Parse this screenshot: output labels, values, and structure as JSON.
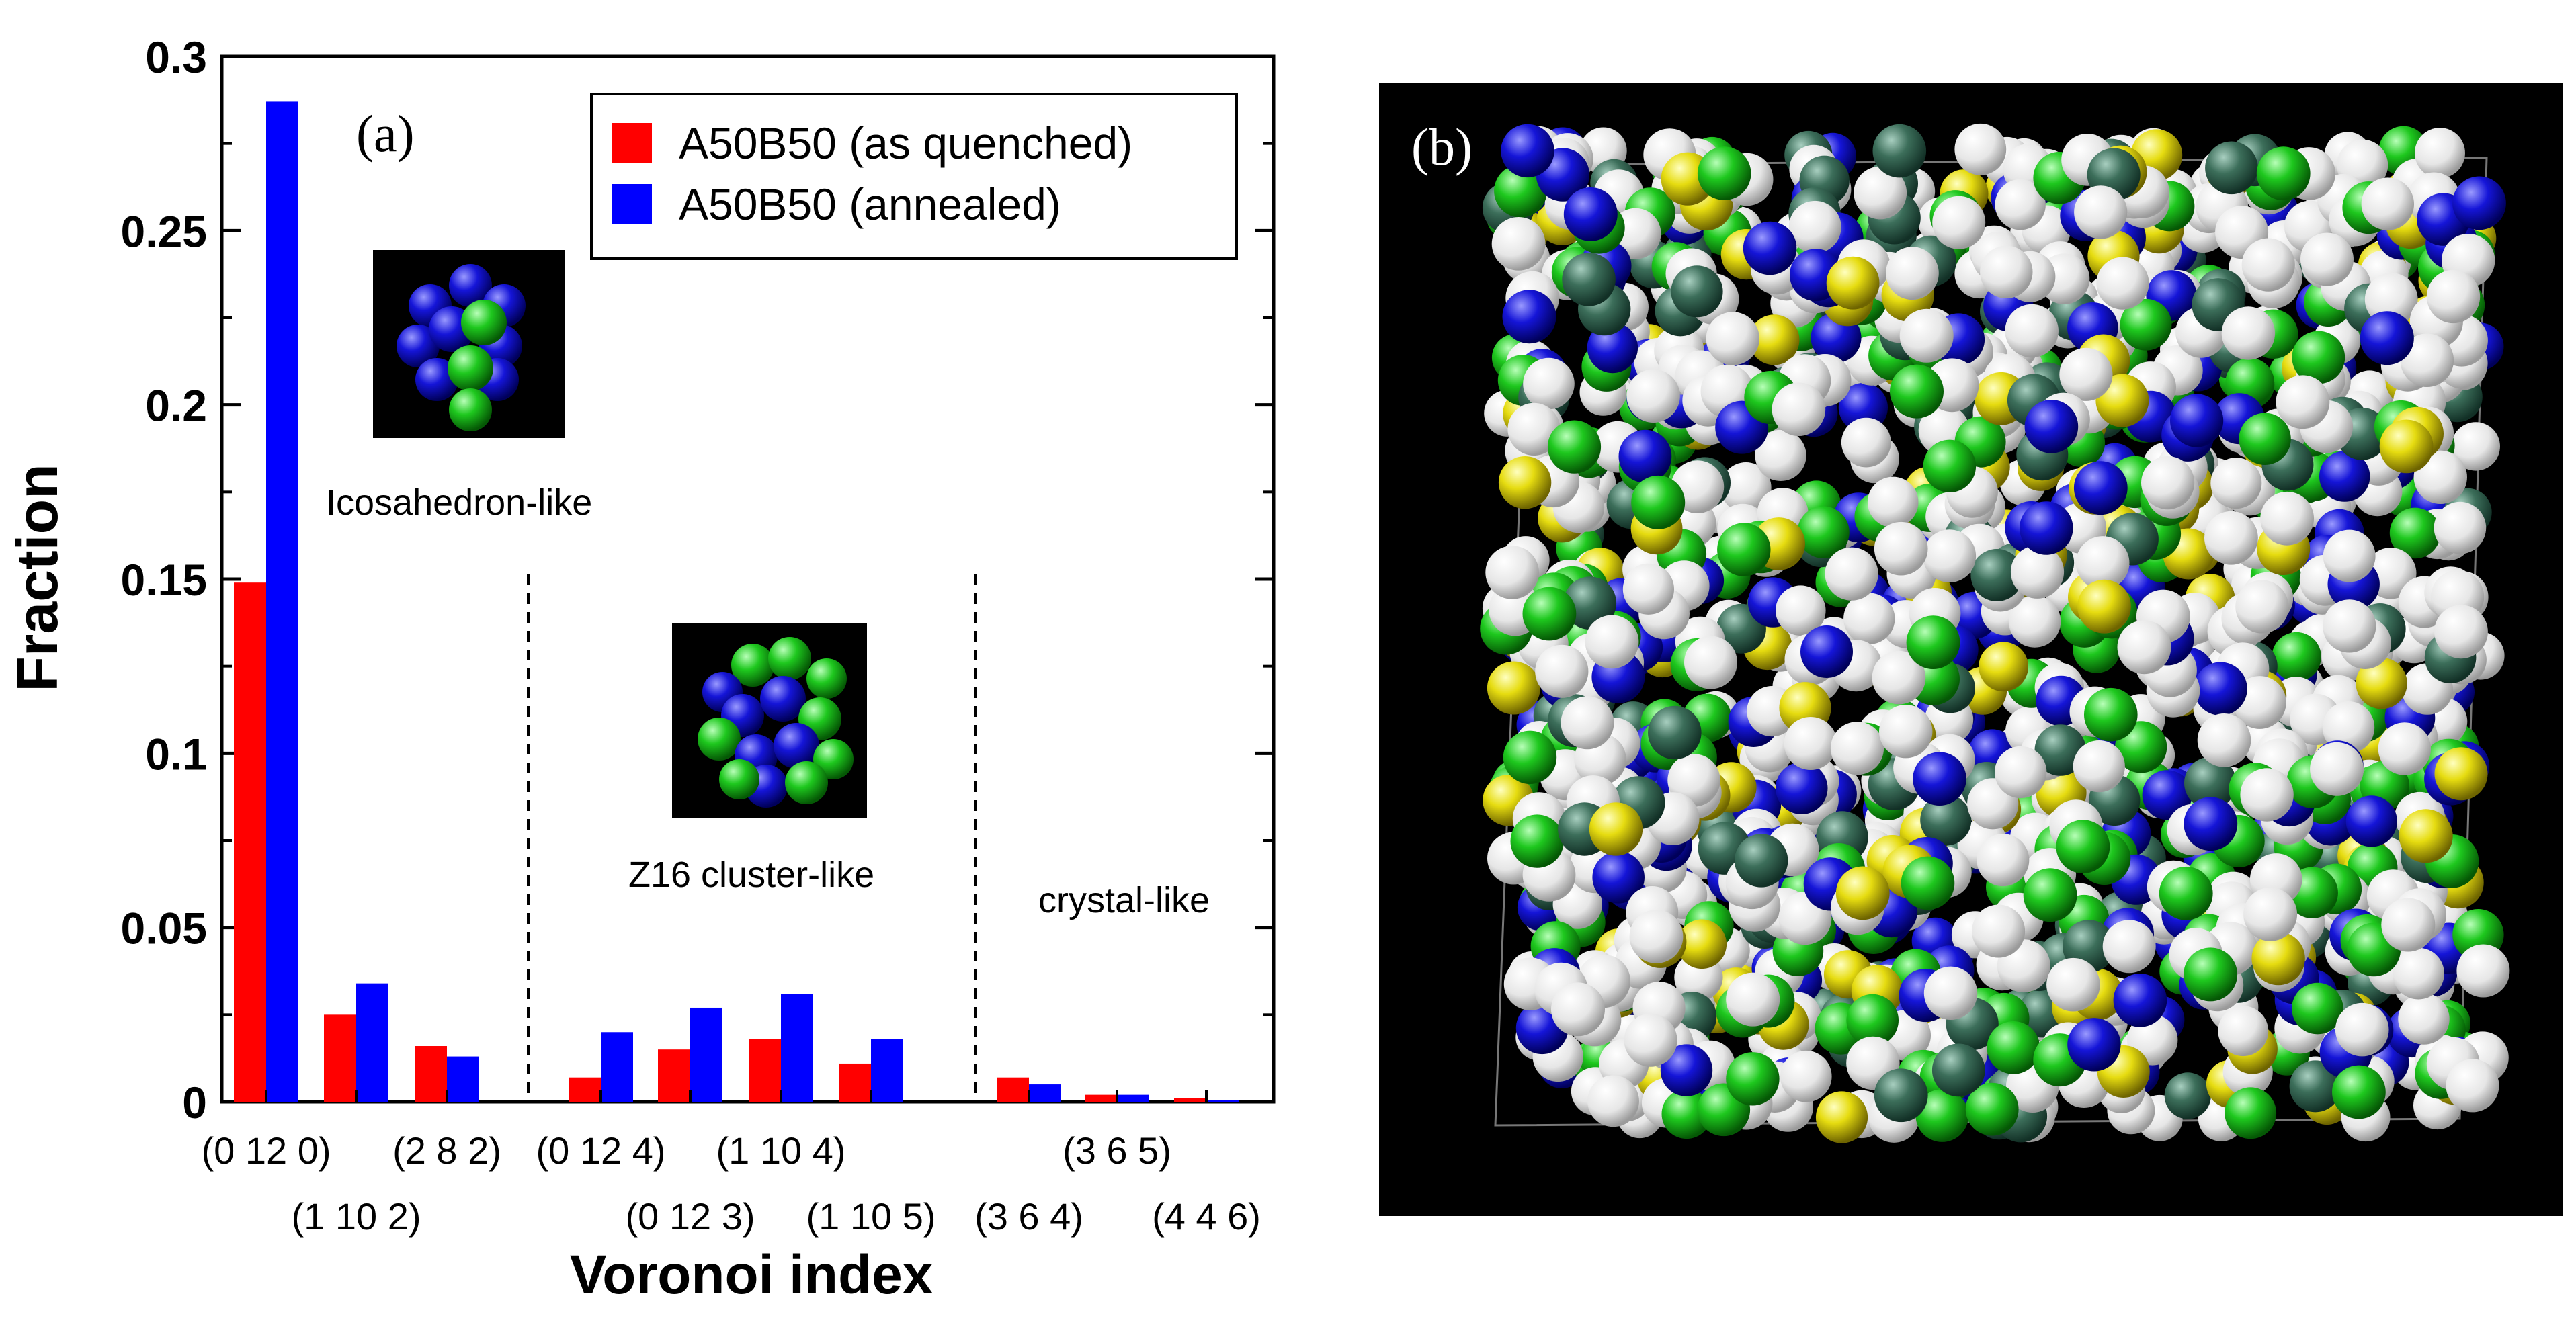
{
  "panel_a": {
    "label": "(a)",
    "chart_data": {
      "type": "bar",
      "xlabel": "Voronoi index",
      "ylabel": "Fraction",
      "ylim": [
        0,
        0.3
      ],
      "yticks": [
        "0",
        "0.05",
        "0.1",
        "0.15",
        "0.2",
        "0.25",
        "0.3"
      ],
      "categories": [
        "(0 12 0)",
        "(1 10 2)",
        "(2 8 2)",
        "(0 12 4)",
        "(0 12 3)",
        "(1 10 4)",
        "(1 10 5)",
        "(3 6 4)",
        "(3 6 5)",
        "(4 4 6)"
      ],
      "series": [
        {
          "name": "A50B50 (as quenched)",
          "color": "#ff0000",
          "values": [
            0.149,
            0.025,
            0.016,
            0.007,
            0.015,
            0.018,
            0.011,
            0.007,
            0.002,
            0.001
          ]
        },
        {
          "name": "A50B50 (annealed)",
          "color": "#0000ff",
          "values": [
            0.287,
            0.034,
            0.013,
            0.02,
            0.027,
            0.031,
            0.018,
            0.005,
            0.002,
            0.0005
          ]
        }
      ],
      "legend": "top-right",
      "grid": false,
      "annotations": {
        "icosahedron": "Icosahedron-like",
        "z16": "Z16 cluster-like",
        "crystal": "crystal-like"
      }
    }
  },
  "panel_b": {
    "label": "(b)",
    "atom_colors": {
      "white": "#f2f2f2",
      "blue": "#1010d8",
      "green": "#1ec81e",
      "yellow": "#e6dc10",
      "darkgreen": "#3c6e5a"
    }
  }
}
